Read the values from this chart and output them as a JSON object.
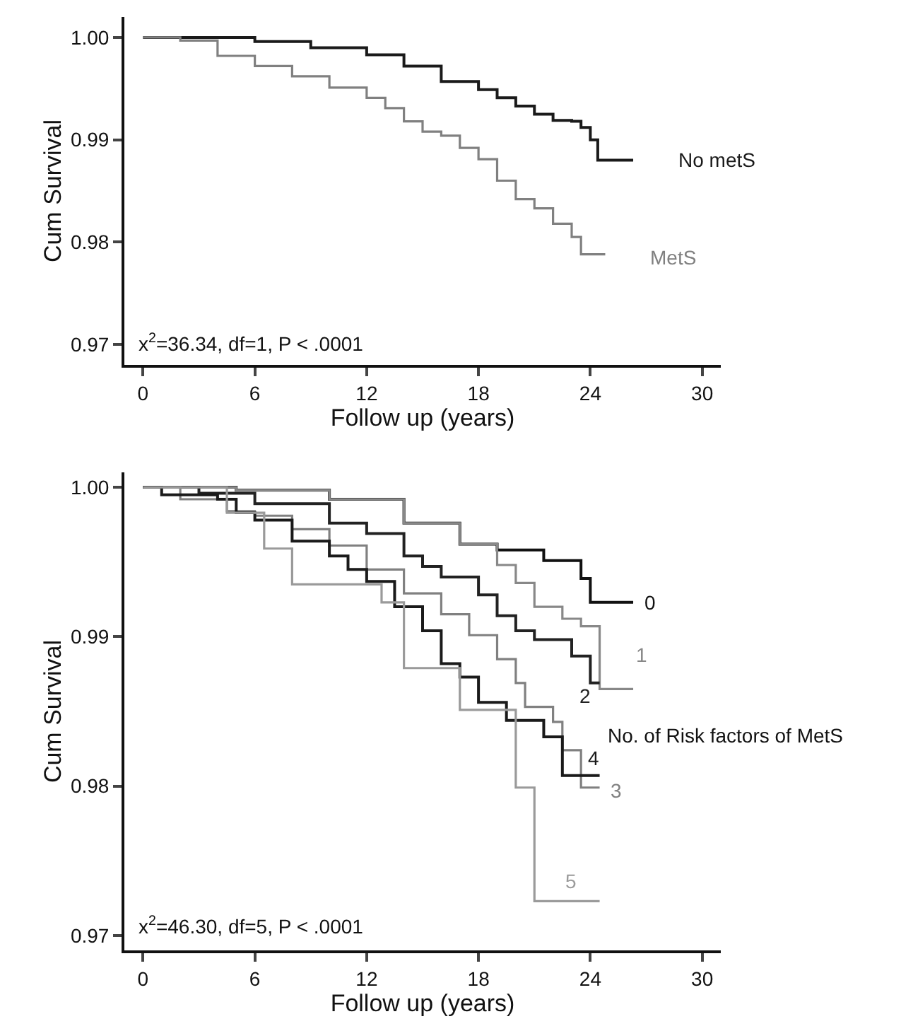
{
  "chart_data": [
    {
      "type": "step",
      "xlabel": "Follow up (years)",
      "ylabel": "Cum Survival",
      "annotations": [
        "x$^{2}$=36.34, df=1, P < .0001"
      ],
      "xlim": [
        -1,
        31
      ],
      "xticks": [
        0,
        6,
        12,
        18,
        24,
        30
      ],
      "ylim": [
        0.968,
        1.002
      ],
      "yticks": [
        {
          "value": 1.0,
          "label": "1.00"
        },
        0.99,
        0.98,
        0.97
      ],
      "series": [
        {
          "name": "No metS",
          "color": "#1a1a1a",
          "x": [
            0,
            3,
            6,
            9,
            12,
            14,
            16,
            18,
            19,
            20,
            21,
            22,
            23,
            23.5,
            24,
            24.4,
            26.3
          ],
          "values": [
            1.0,
            1.0,
            0.9996,
            0.999,
            0.9983,
            0.9972,
            0.9957,
            0.9949,
            0.9941,
            0.9933,
            0.9925,
            0.9919,
            0.9918,
            0.9912,
            0.99,
            0.988,
            0.988
          ]
        },
        {
          "name": "MetS",
          "color": "#808080",
          "x": [
            0,
            2,
            4,
            6,
            8,
            10,
            12,
            13,
            14,
            15,
            16,
            17,
            18,
            19,
            20,
            21,
            22,
            23,
            23.5,
            24.8
          ],
          "values": [
            1.0,
            0.9997,
            0.9982,
            0.9972,
            0.9962,
            0.9951,
            0.9941,
            0.9931,
            0.9918,
            0.9908,
            0.9904,
            0.9892,
            0.9881,
            0.986,
            0.9842,
            0.9833,
            0.9818,
            0.9805,
            0.9788,
            0.9788
          ]
        }
      ]
    },
    {
      "type": "step",
      "xlabel": "Follow up (years)",
      "ylabel": "Cum Survival",
      "annotations": [
        "x$^{2}$=46.30, df=5, P < .0001",
        "No. of Risk factors of MetS"
      ],
      "xlim": [
        -1,
        31
      ],
      "xticks": [
        0,
        6,
        12,
        18,
        24,
        30
      ],
      "ylim": [
        0.969,
        1.001
      ],
      "yticks": [
        {
          "value": 1.0,
          "label": "1.00"
        },
        0.99,
        0.98,
        0.97
      ],
      "series": [
        {
          "name": "0",
          "color": "#111111",
          "x": [
            0,
            5,
            10,
            14,
            17,
            19,
            21.5,
            23.5,
            24,
            26.3
          ],
          "values": [
            1.0,
            0.9998,
            0.9992,
            0.9976,
            0.9962,
            0.9958,
            0.9951,
            0.9939,
            0.9923,
            0.9923
          ]
        },
        {
          "name": "1",
          "color": "#888888",
          "x": [
            0,
            5,
            10,
            14,
            17,
            19,
            20,
            21,
            22.5,
            23.5,
            24.5,
            26.3
          ],
          "values": [
            1.0,
            0.9998,
            0.9992,
            0.9976,
            0.9962,
            0.9948,
            0.9936,
            0.992,
            0.9912,
            0.9907,
            0.9865,
            0.9865
          ]
        },
        {
          "name": "2",
          "color": "#222222",
          "x": [
            0,
            3,
            6,
            10,
            12,
            14,
            15,
            16,
            18,
            19,
            20,
            21,
            23,
            24,
            24.5
          ],
          "values": [
            1.0,
            0.9996,
            0.9989,
            0.9976,
            0.9969,
            0.9954,
            0.9947,
            0.994,
            0.9928,
            0.9914,
            0.9904,
            0.9898,
            0.9887,
            0.9869,
            0.9869
          ]
        },
        {
          "name": "3",
          "color": "#808080",
          "x": [
            0,
            2,
            4.5,
            6,
            8,
            10,
            12,
            14,
            16,
            17.5,
            19,
            20,
            20.5,
            22,
            22.5,
            23.5,
            24.5
          ],
          "values": [
            1.0,
            0.9992,
            0.9984,
            0.9981,
            0.9972,
            0.9961,
            0.9945,
            0.9929,
            0.9915,
            0.9901,
            0.9885,
            0.9869,
            0.9853,
            0.9843,
            0.9824,
            0.9799,
            0.9799
          ]
        },
        {
          "name": "4",
          "color": "#1a1a1a",
          "x": [
            0,
            1,
            4,
            5,
            6,
            8,
            10,
            11,
            12,
            13.5,
            15,
            16,
            17,
            18,
            19.5,
            21.5,
            22.5,
            24.5
          ],
          "values": [
            1.0,
            0.9995,
            0.9992,
            0.9983,
            0.9978,
            0.9964,
            0.9954,
            0.9945,
            0.9937,
            0.992,
            0.9904,
            0.9882,
            0.9873,
            0.9856,
            0.9844,
            0.9833,
            0.9807,
            0.9807
          ]
        },
        {
          "name": "5",
          "color": "#9a9a9a",
          "x": [
            0,
            4.5,
            6.5,
            8,
            12.8,
            14,
            17,
            20,
            21,
            24.5
          ],
          "values": [
            1.0,
            0.9983,
            0.9959,
            0.9935,
            0.9923,
            0.9879,
            0.9851,
            0.9799,
            0.9723,
            0.9723
          ]
        }
      ]
    }
  ]
}
